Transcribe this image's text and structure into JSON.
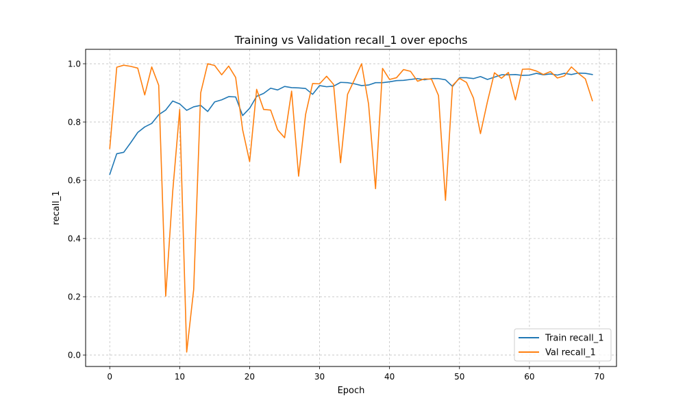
{
  "chart_data": {
    "type": "line",
    "title": "Training vs Validation recall_1 over epochs",
    "xlabel": "Epoch",
    "ylabel": "recall_1",
    "xlim": [
      -3.45,
      72.45
    ],
    "ylim": [
      -0.0395,
      1.0495
    ],
    "xticks": [
      0,
      10,
      20,
      30,
      40,
      50,
      60,
      70
    ],
    "xtick_labels": [
      "0",
      "10",
      "20",
      "30",
      "40",
      "50",
      "60",
      "70"
    ],
    "yticks": [
      0.0,
      0.2,
      0.4,
      0.6,
      0.8,
      1.0
    ],
    "ytick_labels": [
      "0.0",
      "0.2",
      "0.4",
      "0.6",
      "0.8",
      "1.0"
    ],
    "grid": true,
    "legend_position": "lower-right",
    "x": [
      0,
      1,
      2,
      3,
      4,
      5,
      6,
      7,
      8,
      9,
      10,
      11,
      12,
      13,
      14,
      15,
      16,
      17,
      18,
      19,
      20,
      21,
      22,
      23,
      24,
      25,
      26,
      27,
      28,
      29,
      30,
      31,
      32,
      33,
      34,
      35,
      36,
      37,
      38,
      39,
      40,
      41,
      42,
      43,
      44,
      45,
      46,
      47,
      48,
      49,
      50,
      51,
      52,
      53,
      54,
      55,
      56,
      57,
      58,
      59,
      60,
      61,
      62,
      63,
      64,
      65,
      66,
      67,
      68,
      69
    ],
    "series": [
      {
        "name": "Train recall_1",
        "color": "#1f77b4",
        "values": [
          0.62,
          0.691,
          0.696,
          0.729,
          0.764,
          0.783,
          0.795,
          0.825,
          0.841,
          0.872,
          0.862,
          0.84,
          0.852,
          0.857,
          0.836,
          0.869,
          0.876,
          0.887,
          0.886,
          0.822,
          0.847,
          0.888,
          0.898,
          0.916,
          0.91,
          0.922,
          0.918,
          0.917,
          0.915,
          0.895,
          0.925,
          0.921,
          0.923,
          0.936,
          0.935,
          0.931,
          0.925,
          0.927,
          0.935,
          0.935,
          0.938,
          0.942,
          0.943,
          0.946,
          0.949,
          0.945,
          0.949,
          0.949,
          0.945,
          0.922,
          0.952,
          0.952,
          0.949,
          0.956,
          0.946,
          0.954,
          0.962,
          0.962,
          0.963,
          0.96,
          0.961,
          0.967,
          0.962,
          0.965,
          0.961,
          0.967,
          0.963,
          0.968,
          0.967,
          0.963
        ]
      },
      {
        "name": "Val recall_1",
        "color": "#ff7f0e",
        "values": [
          0.709,
          0.988,
          0.995,
          0.991,
          0.985,
          0.893,
          0.989,
          0.926,
          0.202,
          0.561,
          0.843,
          0.01,
          0.225,
          0.9,
          1.0,
          0.994,
          0.962,
          0.992,
          0.953,
          0.773,
          0.664,
          0.912,
          0.843,
          0.841,
          0.773,
          0.746,
          0.906,
          0.614,
          0.826,
          0.932,
          0.931,
          0.957,
          0.929,
          0.66,
          0.895,
          0.946,
          1.0,
          0.862,
          0.571,
          0.984,
          0.946,
          0.952,
          0.98,
          0.974,
          0.94,
          0.948,
          0.947,
          0.891,
          0.531,
          0.925,
          0.95,
          0.936,
          0.882,
          0.76,
          0.87,
          0.969,
          0.95,
          0.97,
          0.876,
          0.981,
          0.982,
          0.975,
          0.963,
          0.973,
          0.951,
          0.958,
          0.989,
          0.967,
          0.948,
          0.873
        ]
      }
    ]
  }
}
